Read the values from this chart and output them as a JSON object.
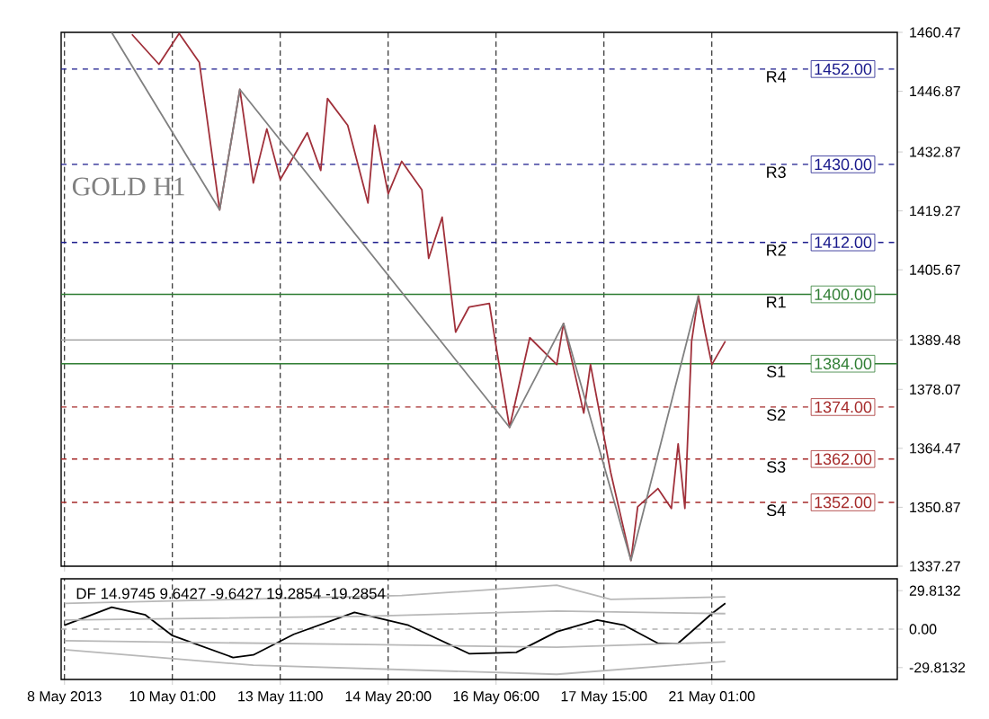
{
  "chart_data": [
    {
      "type": "line",
      "title": "GOLD H1",
      "categories": [
        null,
        null,
        null,
        null,
        null,
        null,
        null,
        null,
        null,
        null,
        null,
        null,
        null,
        null,
        null,
        null,
        null,
        null,
        null,
        null,
        null,
        null,
        null,
        null,
        null,
        null,
        null,
        null,
        null,
        null,
        null,
        null,
        null,
        null,
        null,
        null,
        null,
        null,
        null,
        null,
        null,
        null,
        null,
        null,
        null,
        null,
        null,
        null,
        null,
        null,
        null,
        null,
        null,
        null,
        null,
        null,
        null,
        null,
        null,
        null,
        null,
        null,
        null,
        null,
        null,
        null,
        null,
        null,
        null,
        null,
        null,
        null,
        null,
        null,
        null,
        null,
        null,
        null,
        null,
        null,
        null,
        null,
        null,
        null,
        null,
        null,
        null,
        null,
        null,
        null,
        null,
        null,
        null,
        null,
        null,
        null,
        null,
        null,
        null,
        null,
        null,
        null,
        null,
        null,
        null,
        null,
        null,
        null,
        null,
        null,
        null,
        null,
        null,
        null,
        null,
        null,
        null,
        null,
        null,
        null,
        null,
        null,
        null,
        null
      ],
      "ylim": [
        1337.27,
        1460.47
      ],
      "yticks": [
        1460.47,
        1446.87,
        1432.87,
        1419.27,
        1405.67,
        {
          "value": 1389.48,
          "label": "1389.48"
        },
        1378.07,
        1364.47,
        1350.87,
        1337.27
      ],
      "tick_labels": "y",
      "grid": "x",
      "series": [
        {
          "color": "#a0303a",
          "values": [
            null,
            null,
            null,
            null,
            null,
            null,
            null,
            null,
            null,
            null,
            1460,
            null,
            null,
            null,
            1453.1,
            null,
            null,
            1460.2,
            null,
            null,
            1453.5,
            null,
            null,
            1419.5,
            null,
            null,
            1447.3,
            null,
            1425.7,
            null,
            1438.2,
            null,
            1426.5,
            null,
            null,
            null,
            1437.3,
            null,
            1428.6,
            1445.2,
            null,
            null,
            1439,
            null,
            null,
            1421.1,
            1439,
            null,
            1423.2,
            null,
            1430.7,
            null,
            null,
            1424.1,
            1408.3,
            null,
            1417.8,
            null,
            1391.3,
            null,
            1397.1,
            null,
            null,
            1397.9,
            1388,
            null,
            1369.3,
            null,
            null,
            1390,
            null,
            null,
            null,
            1383.8,
            1393.3,
            null,
            null,
            1372.6,
            1383.8,
            null,
            null,
            1358.9,
            null,
            null,
            1338.6,
            1351,
            null,
            null,
            1355.2,
            null,
            1350.6,
            1365.5,
            1350.6,
            1389.2,
            1399.6,
            1391.3,
            1383.8,
            null,
            1389.2,
            null,
            null,
            null,
            null,
            null,
            null,
            null,
            null,
            null,
            null,
            null,
            null,
            null,
            null,
            null,
            null,
            null,
            null,
            null,
            null,
            null,
            null,
            null,
            null,
            null
          ]
        },
        {
          "color": "#808080",
          "values": [
            null,
            null,
            null,
            null,
            null,
            null,
            null,
            1460.4,
            null,
            null,
            null,
            null,
            null,
            null,
            null,
            null,
            null,
            null,
            null,
            null,
            null,
            null,
            null,
            1419.5,
            null,
            null,
            1447.3,
            null,
            null,
            null,
            null,
            null,
            null,
            null,
            null,
            null,
            null,
            null,
            null,
            null,
            null,
            null,
            null,
            null,
            null,
            null,
            null,
            null,
            null,
            null,
            null,
            null,
            null,
            null,
            null,
            null,
            null,
            null,
            null,
            null,
            null,
            null,
            null,
            null,
            null,
            null,
            1369.3,
            null,
            null,
            null,
            null,
            null,
            null,
            null,
            1393.3,
            null,
            null,
            null,
            null,
            null,
            null,
            null,
            null,
            null,
            1338.6,
            null,
            null,
            null,
            null,
            null,
            null,
            null,
            null,
            null,
            1399.6,
            null,
            null,
            null,
            null,
            null,
            null,
            null,
            null,
            null,
            null,
            null,
            null,
            null,
            null,
            null,
            null,
            null,
            null,
            null,
            null,
            null,
            null,
            null,
            null,
            null,
            null,
            null,
            null,
            null
          ]
        }
      ],
      "ref_lines": [
        {
          "axis": "y",
          "value": 1452,
          "label": "1452.00",
          "color": "#1a1a8c",
          "line_style": "dashed"
        },
        {
          "axis": "y",
          "value": 1430,
          "label": "1430.00",
          "color": "#1a1a8c",
          "line_style": "dashed"
        },
        {
          "axis": "y",
          "value": 1412,
          "label": "1412.00",
          "color": "#1a1a8c",
          "line_style": "dashed"
        },
        {
          "axis": "y",
          "value": 1400,
          "label": "1400.00",
          "color": "#2e7d32",
          "line_style": "solid"
        },
        {
          "axis": "y",
          "value": 1389.48,
          "color": "#a8a8a8",
          "line_style": "solid"
        },
        {
          "axis": "y",
          "value": 1384,
          "label": "1384.00",
          "color": "#2e7d32",
          "line_style": "solid"
        },
        {
          "axis": "y",
          "value": 1374,
          "label": "1374.00",
          "color": "#a52a2a",
          "line_style": "dashed"
        },
        {
          "axis": "y",
          "value": 1362,
          "label": "1362.00",
          "color": "#a52a2a",
          "line_style": "dashed"
        },
        {
          "axis": "y",
          "value": 1352,
          "label": "1352.00",
          "color": "#a52a2a",
          "line_style": "dashed"
        }
      ],
      "annotations": [
        {
          "text": "R4",
          "y": 1452
        },
        {
          "text": "R3",
          "y": 1430
        },
        {
          "text": "R2",
          "y": 1412
        },
        {
          "text": "R1",
          "y": 1400
        },
        {
          "text": "S1",
          "y": 1384
        },
        {
          "text": "S2",
          "y": 1374
        },
        {
          "text": "S3",
          "y": 1362
        },
        {
          "text": "S4",
          "y": 1352
        }
      ]
    },
    {
      "type": "line",
      "title": "DF 14.9745 9.6427 -9.6427 19.2854 -19.2854",
      "categories": [
        "8 May 2013",
        null,
        null,
        null,
        null,
        null,
        null,
        null,
        null,
        null,
        null,
        null,
        null,
        null,
        null,
        null,
        "10 May 01:00",
        null,
        null,
        null,
        null,
        null,
        null,
        null,
        null,
        null,
        null,
        null,
        null,
        null,
        null,
        null,
        "13 May 11:00",
        null,
        null,
        null,
        null,
        null,
        null,
        null,
        null,
        null,
        null,
        null,
        null,
        null,
        null,
        null,
        "14 May 20:00",
        null,
        null,
        null,
        null,
        null,
        null,
        null,
        null,
        null,
        null,
        null,
        null,
        null,
        null,
        null,
        "16 May 06:00",
        null,
        null,
        null,
        null,
        null,
        null,
        null,
        null,
        null,
        null,
        null,
        null,
        null,
        null,
        null,
        "17 May 15:00",
        null,
        null,
        null,
        null,
        null,
        null,
        null,
        null,
        null,
        null,
        null,
        null,
        null,
        null,
        null,
        "21 May 01:00",
        null,
        null,
        null,
        null,
        null,
        null,
        null,
        null,
        null,
        null,
        null,
        null,
        null,
        null,
        null,
        null,
        null,
        null,
        null,
        null,
        null,
        null,
        null,
        null,
        null,
        null,
        null
      ],
      "ylim": [
        -39,
        39
      ],
      "yticks": [
        29.8132,
        {
          "value": 0,
          "label": "0.00"
        },
        -29.8132
      ],
      "grid": "x",
      "series": [
        {
          "color": "#000000",
          "values": [
            3,
            null,
            null,
            null,
            null,
            null,
            null,
            17,
            null,
            null,
            null,
            null,
            11,
            null,
            null,
            null,
            -5,
            null,
            null,
            null,
            null,
            null,
            null,
            null,
            null,
            -22,
            null,
            null,
            -20,
            null,
            null,
            null,
            null,
            null,
            -4,
            null,
            null,
            null,
            null,
            null,
            null,
            null,
            null,
            13,
            null,
            null,
            null,
            null,
            null,
            null,
            null,
            3,
            null,
            null,
            null,
            null,
            null,
            null,
            null,
            null,
            -19,
            null,
            null,
            null,
            null,
            null,
            null,
            -18,
            null,
            null,
            null,
            null,
            null,
            -2,
            null,
            null,
            null,
            null,
            null,
            7,
            null,
            null,
            null,
            3,
            null,
            null,
            null,
            null,
            -11,
            null,
            null,
            -11,
            null,
            null,
            null,
            null,
            12,
            null,
            20,
            null,
            null,
            null,
            null,
            null,
            null,
            null,
            null,
            null,
            null,
            null,
            null,
            null,
            null,
            null,
            null,
            null,
            null,
            null,
            null,
            null,
            null,
            null,
            null,
            null
          ]
        },
        {
          "color": "#b8b8b8",
          "values": [
            20,
            null,
            null,
            null,
            null,
            null,
            null,
            null,
            null,
            null,
            null,
            null,
            null,
            null,
            null,
            null,
            null,
            null,
            null,
            null,
            null,
            null,
            null,
            null,
            null,
            null,
            null,
            null,
            null,
            null,
            null,
            null,
            null,
            null,
            null,
            null,
            null,
            null,
            null,
            null,
            null,
            null,
            null,
            null,
            null,
            null,
            null,
            null,
            null,
            null,
            26,
            null,
            null,
            null,
            null,
            null,
            null,
            null,
            null,
            null,
            null,
            null,
            null,
            null,
            null,
            null,
            null,
            null,
            null,
            null,
            null,
            null,
            null,
            34,
            null,
            null,
            null,
            null,
            null,
            null,
            null,
            23,
            null,
            null,
            null,
            null,
            null,
            null,
            null,
            null,
            null,
            null,
            null,
            null,
            null,
            null,
            null,
            null,
            25,
            null,
            null,
            null,
            null,
            null,
            null,
            null,
            null,
            null,
            null,
            null,
            null,
            null,
            null,
            null,
            null,
            null,
            null,
            null,
            null,
            null,
            null,
            null,
            null,
            null
          ]
        },
        {
          "color": "#b8b8b8",
          "values": [
            7,
            null,
            null,
            null,
            null,
            null,
            null,
            null,
            null,
            null,
            null,
            null,
            null,
            null,
            null,
            null,
            null,
            null,
            null,
            null,
            null,
            null,
            null,
            null,
            null,
            null,
            null,
            null,
            null,
            null,
            null,
            null,
            null,
            null,
            null,
            null,
            null,
            null,
            null,
            null,
            null,
            null,
            null,
            null,
            null,
            10,
            null,
            null,
            null,
            null,
            null,
            null,
            null,
            null,
            null,
            null,
            null,
            null,
            null,
            null,
            null,
            null,
            null,
            null,
            null,
            null,
            null,
            null,
            null,
            null,
            null,
            null,
            null,
            14,
            null,
            null,
            null,
            null,
            null,
            null,
            null,
            null,
            null,
            null,
            null,
            null,
            null,
            null,
            null,
            null,
            null,
            null,
            null,
            null,
            null,
            null,
            null,
            null,
            12,
            null,
            null,
            null,
            null,
            null,
            null,
            null,
            null,
            null,
            null,
            null,
            null,
            null,
            null,
            null,
            null,
            null,
            null,
            null,
            null,
            null,
            null,
            null,
            null,
            null
          ]
        },
        {
          "color": "#b8b8b8",
          "values": [
            -9,
            null,
            null,
            null,
            null,
            null,
            null,
            null,
            null,
            null,
            null,
            null,
            null,
            null,
            null,
            null,
            null,
            null,
            null,
            null,
            null,
            null,
            null,
            null,
            null,
            null,
            null,
            null,
            null,
            null,
            null,
            null,
            null,
            null,
            null,
            null,
            null,
            null,
            null,
            null,
            null,
            null,
            null,
            null,
            null,
            -12,
            null,
            null,
            null,
            null,
            null,
            null,
            null,
            null,
            null,
            null,
            null,
            null,
            null,
            null,
            null,
            null,
            null,
            null,
            null,
            null,
            null,
            null,
            null,
            null,
            null,
            null,
            null,
            -14,
            null,
            null,
            null,
            null,
            null,
            null,
            null,
            null,
            null,
            null,
            null,
            null,
            null,
            null,
            null,
            null,
            null,
            null,
            null,
            null,
            null,
            null,
            null,
            null,
            -10,
            null,
            null,
            null,
            null,
            null,
            null,
            null,
            null,
            null,
            null,
            null,
            null,
            null,
            null,
            null,
            null,
            null,
            null,
            null,
            null,
            null,
            null,
            null,
            null,
            null
          ]
        },
        {
          "color": "#b8b8b8",
          "values": [
            -16,
            null,
            null,
            null,
            null,
            null,
            null,
            null,
            null,
            null,
            null,
            null,
            null,
            null,
            null,
            null,
            null,
            null,
            null,
            null,
            null,
            null,
            null,
            null,
            null,
            null,
            null,
            null,
            -28,
            null,
            null,
            null,
            null,
            null,
            null,
            null,
            null,
            null,
            null,
            null,
            null,
            null,
            null,
            null,
            null,
            null,
            null,
            null,
            null,
            null,
            null,
            null,
            null,
            null,
            null,
            null,
            null,
            null,
            null,
            null,
            null,
            null,
            null,
            null,
            null,
            null,
            null,
            null,
            null,
            null,
            null,
            null,
            null,
            -35,
            null,
            null,
            null,
            null,
            null,
            null,
            null,
            null,
            null,
            null,
            null,
            null,
            null,
            null,
            null,
            null,
            null,
            null,
            null,
            null,
            null,
            null,
            null,
            null,
            -25,
            null,
            null,
            null,
            null,
            null,
            null,
            null,
            null,
            null,
            null,
            null,
            null,
            null,
            null,
            null,
            null,
            null,
            null,
            null,
            null,
            null,
            null,
            null,
            null,
            null
          ]
        }
      ],
      "ref_lines": [
        {
          "axis": "y",
          "value": 0,
          "color": "#b0b0b0",
          "line_style": "dashed"
        }
      ]
    }
  ]
}
